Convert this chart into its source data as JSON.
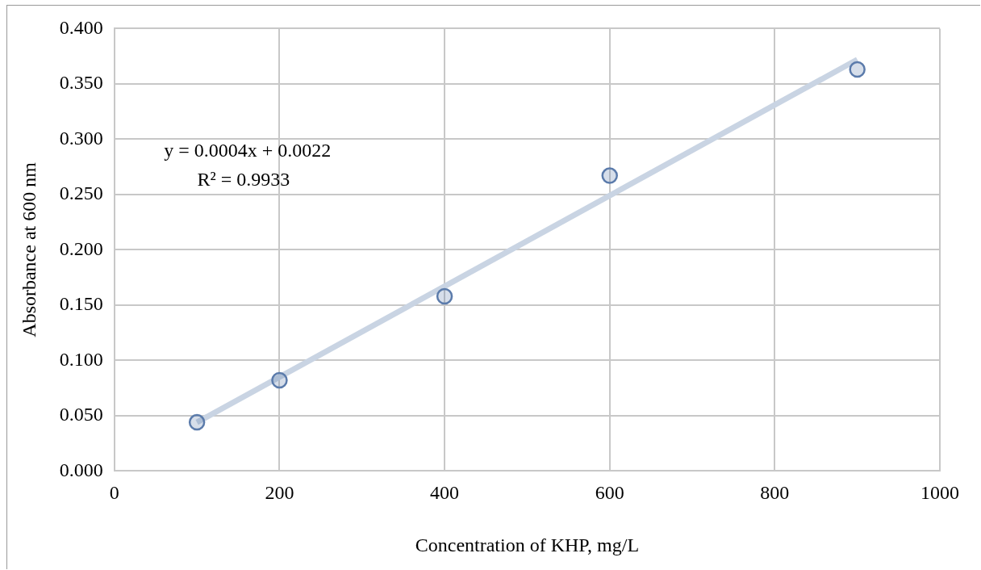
{
  "chart_data": {
    "type": "scatter",
    "xlabel": "Concentration of KHP, mg/L",
    "ylabel": "Absorbance at 600 nm",
    "annotations": [
      "y = 0.0004x + 0.0022",
      "R² = 0.9933"
    ],
    "x": [
      100,
      200,
      400,
      600,
      900
    ],
    "series": [
      {
        "type": "scatter",
        "color": "#5b7bab",
        "marker": "circle",
        "values": [
          0.044,
          0.082,
          0.158,
          0.267,
          0.363
        ]
      },
      {
        "type": "line",
        "color": "#c9d4e3",
        "marker": "none",
        "x": [
          100,
          900
        ],
        "values": [
          0.044,
          0.372
        ]
      }
    ],
    "xlim": [
      0,
      1000
    ],
    "xticks": [
      0,
      200,
      400,
      600,
      800,
      1000
    ],
    "ylim": [
      0,
      0.4
    ],
    "yticks": [
      {
        "value": 0,
        "label": "0.000"
      },
      {
        "value": 0.05,
        "label": "0.050"
      },
      {
        "value": 0.1,
        "label": "0.100"
      },
      {
        "value": 0.15,
        "label": "0.150"
      },
      {
        "value": 0.2,
        "label": "0.200"
      },
      {
        "value": 0.25,
        "label": "0.250"
      },
      {
        "value": 0.3,
        "label": "0.300"
      },
      {
        "value": 0.35,
        "label": "0.350"
      },
      {
        "value": 0.4,
        "label": "0.400"
      }
    ],
    "grid": true,
    "legend": false
  }
}
